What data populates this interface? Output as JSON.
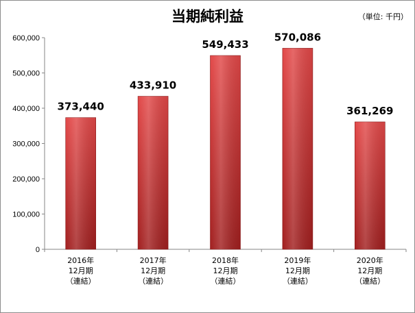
{
  "chart_data": {
    "type": "bar",
    "title": "当期純利益",
    "unit_note": "（単位: 千円）",
    "categories": [
      [
        "2016年",
        "12月期",
        "（連結）"
      ],
      [
        "2017年",
        "12月期",
        "（連結）"
      ],
      [
        "2018年",
        "12月期",
        "（連結）"
      ],
      [
        "2019年",
        "12月期",
        "（連結）"
      ],
      [
        "2020年",
        "12月期",
        "（連結）"
      ]
    ],
    "values": [
      373440,
      433910,
      549433,
      570086,
      361269
    ],
    "data_labels": [
      "373,440",
      "433,910",
      "549,433",
      "570,086",
      "361,269"
    ],
    "ylim": [
      0,
      600000
    ],
    "yticks": [
      0,
      100000,
      200000,
      300000,
      400000,
      500000,
      600000
    ],
    "ytick_labels": [
      "0",
      "100,000",
      "200,000",
      "300,000",
      "400,000",
      "500,000",
      "600,000"
    ],
    "bar_color": "#d63c3c",
    "grid": false,
    "legend": "none"
  }
}
